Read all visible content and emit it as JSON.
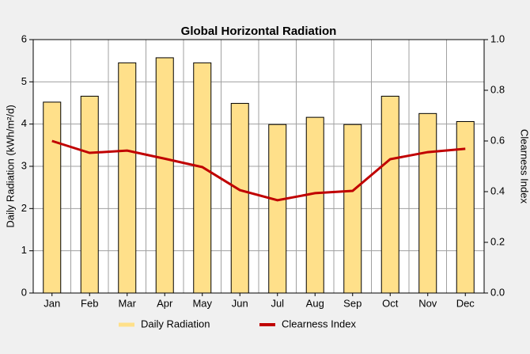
{
  "chart_data": {
    "type": "bar",
    "title": "Global Horizontal Radiation",
    "ylabel": "Daily Radiation (kWh/m²/d)",
    "y2label": "Clearness Index",
    "categories": [
      "Jan",
      "Feb",
      "Mar",
      "Apr",
      "May",
      "Jun",
      "Jul",
      "Aug",
      "Sep",
      "Oct",
      "Nov",
      "Dec"
    ],
    "series": [
      {
        "name": "Daily Radiation",
        "type": "bar",
        "color": "#ffe08a",
        "values": [
          4.52,
          4.66,
          5.45,
          5.57,
          5.45,
          4.49,
          3.99,
          4.16,
          3.99,
          4.66,
          4.25,
          4.06
        ]
      },
      {
        "name": "Clearness Index",
        "type": "line",
        "axis": "y2",
        "color": "#c00000",
        "values": [
          0.6,
          0.553,
          0.562,
          0.53,
          0.497,
          0.406,
          0.366,
          0.394,
          0.403,
          0.528,
          0.556,
          0.569
        ]
      }
    ],
    "ylim": [
      0,
      6
    ],
    "yticks": [
      0,
      1,
      2,
      3,
      4,
      5,
      6
    ],
    "y2lim": [
      0,
      1
    ],
    "y2ticks": [
      {
        "value": 0,
        "label": "0.0"
      },
      0.2,
      0.4,
      0.6,
      0.8,
      {
        "value": 1,
        "label": "1.0"
      }
    ],
    "grid": true
  }
}
